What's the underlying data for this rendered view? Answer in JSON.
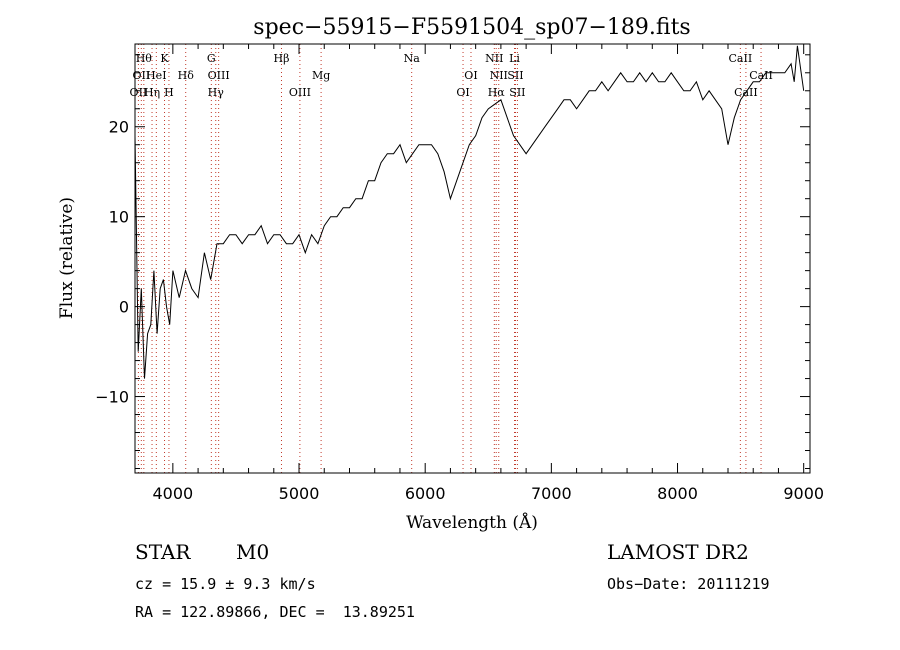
{
  "chart_data": {
    "type": "line",
    "title": "spec−55915−F5591504_sp07−189.fits",
    "xlabel": "Wavelength (Å)",
    "ylabel": "Flux (relative)",
    "xlim": [
      3700,
      9050
    ],
    "ylim": [
      -18.5,
      29.2
    ],
    "x_ticks": [
      4000,
      5000,
      6000,
      7000,
      8000,
      9000
    ],
    "y_ticks": [
      -10,
      0,
      10,
      20
    ],
    "x_tick_labels": [
      "4000",
      "5000",
      "6000",
      "7000",
      "8000",
      "9000"
    ],
    "y_tick_labels": [
      "−10",
      "0",
      "10",
      "20"
    ],
    "grid": false,
    "series": [
      {
        "x": [
          3700,
          3725,
          3750,
          3775,
          3800,
          3825,
          3850,
          3875,
          3900,
          3925,
          3950,
          3975,
          4000,
          4050,
          4100,
          4150,
          4200,
          4250,
          4300,
          4350,
          4400,
          4450,
          4500,
          4550,
          4600,
          4650,
          4700,
          4750,
          4800,
          4850,
          4900,
          4950,
          5000,
          5050,
          5100,
          5150,
          5200,
          5250,
          5300,
          5350,
          5400,
          5450,
          5500,
          5550,
          5600,
          5650,
          5700,
          5750,
          5800,
          5850,
          5900,
          5950,
          6000,
          6050,
          6100,
          6150,
          6200,
          6250,
          6300,
          6350,
          6400,
          6450,
          6500,
          6550,
          6600,
          6650,
          6700,
          6750,
          6800,
          6850,
          6900,
          6950,
          7000,
          7050,
          7100,
          7150,
          7200,
          7250,
          7300,
          7350,
          7400,
          7450,
          7500,
          7550,
          7600,
          7650,
          7700,
          7750,
          7800,
          7850,
          7900,
          7950,
          8000,
          8050,
          8100,
          8150,
          8200,
          8250,
          8300,
          8350,
          8400,
          8450,
          8500,
          8550,
          8600,
          8650,
          8700,
          8750,
          8800,
          8850,
          8900,
          8925,
          8950,
          9000
        ],
        "y": [
          19,
          -5,
          2,
          -8,
          -3,
          -2,
          4,
          -3,
          2,
          3,
          0,
          -2,
          4,
          1,
          4,
          2,
          1,
          6,
          3,
          7,
          7,
          8,
          8,
          7,
          8,
          8,
          9,
          7,
          8,
          8,
          7,
          7,
          8,
          6,
          8,
          7,
          9,
          10,
          10,
          11,
          11,
          12,
          12,
          14,
          14,
          16,
          17,
          17,
          18,
          16,
          17,
          18,
          18,
          18,
          17,
          15,
          12,
          14,
          16,
          18,
          19,
          21,
          22,
          22.5,
          23,
          21,
          19,
          18,
          17,
          18,
          19,
          20,
          21,
          22,
          23,
          23,
          22,
          23,
          24,
          24,
          25,
          24,
          25,
          26,
          25,
          25,
          26,
          25,
          26,
          25,
          25,
          26,
          25,
          24,
          24,
          25,
          23,
          24,
          23,
          22,
          18,
          21,
          23,
          24,
          25,
          25,
          26,
          26,
          26,
          26,
          27,
          25,
          29,
          24
        ]
      }
    ],
    "lines": [
      {
        "wl": 3727,
        "label": "OII",
        "row": 3
      },
      {
        "wl": 3750,
        "label": "OII",
        "row": 2
      },
      {
        "wl": 3770,
        "label": "Hθ",
        "row": 1
      },
      {
        "wl": 3835,
        "label": "Hη",
        "row": 3
      },
      {
        "wl": 3869,
        "label": "HeI",
        "row": 2
      },
      {
        "wl": 3934,
        "label": "K",
        "row": 1
      },
      {
        "wl": 3969,
        "label": "H",
        "row": 3
      },
      {
        "wl": 4102,
        "label": "Hδ",
        "row": 2
      },
      {
        "wl": 4305,
        "label": "G",
        "row": 1
      },
      {
        "wl": 4340,
        "label": "Hγ",
        "row": 3
      },
      {
        "wl": 4363,
        "label": "OIII",
        "row": 2
      },
      {
        "wl": 4861,
        "label": "Hβ",
        "row": 1
      },
      {
        "wl": 5007,
        "label": "OIII",
        "row": 3
      },
      {
        "wl": 5175,
        "label": "Mg",
        "row": 2
      },
      {
        "wl": 5893,
        "label": "Na",
        "row": 1
      },
      {
        "wl": 6300,
        "label": "OI",
        "row": 3
      },
      {
        "wl": 6363,
        "label": "OI",
        "row": 2
      },
      {
        "wl": 6548,
        "label": "NII",
        "row": 1
      },
      {
        "wl": 6563,
        "label": "Hα",
        "row": 3
      },
      {
        "wl": 6583,
        "label": "NII",
        "row": 2
      },
      {
        "wl": 6708,
        "label": "Li",
        "row": 1
      },
      {
        "wl": 6716,
        "label": "SII",
        "row": 2
      },
      {
        "wl": 6731,
        "label": "SII",
        "row": 3
      },
      {
        "wl": 8498,
        "label": "CaII",
        "row": 1
      },
      {
        "wl": 8542,
        "label": "CaII",
        "row": 3
      },
      {
        "wl": 8662,
        "label": "CaII",
        "row": 2
      }
    ]
  },
  "info": {
    "class_label": "STAR",
    "subclass": "M0",
    "survey": "LAMOST DR2",
    "cz": "cz = 15.9 ± 9.3 km/s",
    "obs_date": "Obs−Date: 20111219",
    "radec": "RA = 122.89866, DEC =  13.89251"
  }
}
